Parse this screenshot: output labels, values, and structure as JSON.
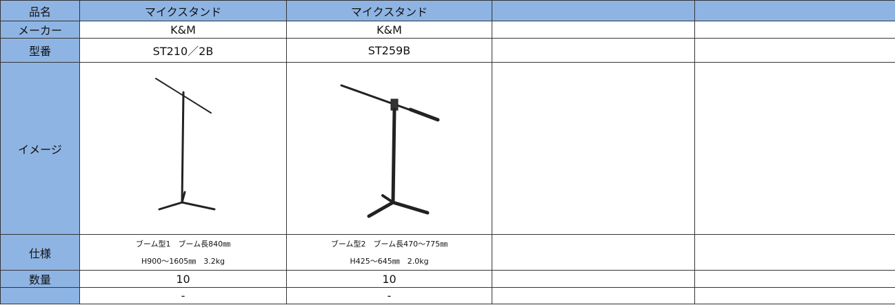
{
  "table": {
    "header": {
      "label": "品名",
      "cells": [
        "マイクスタンド",
        "マイクスタンド"
      ]
    },
    "rows": [
      {
        "label": "メーカー",
        "cells": [
          "K&M",
          "K&M"
        ]
      },
      {
        "label": "型番",
        "cells": [
          "ST210／2B",
          "ST259B"
        ]
      },
      {
        "label": "イメージ"
      },
      {
        "label": "仕様",
        "cells": [
          [
            "ブーム型1　ブーム長840㎜",
            "H900～1605㎜　3.2kg"
          ],
          [
            "ブーム型2　ブーム長470～775㎜",
            "H425～645㎜　2.0kg"
          ]
        ]
      },
      {
        "label": "数量",
        "cells": [
          "10",
          "10"
        ]
      },
      {
        "cells": [
          "-",
          "-"
        ]
      }
    ]
  }
}
